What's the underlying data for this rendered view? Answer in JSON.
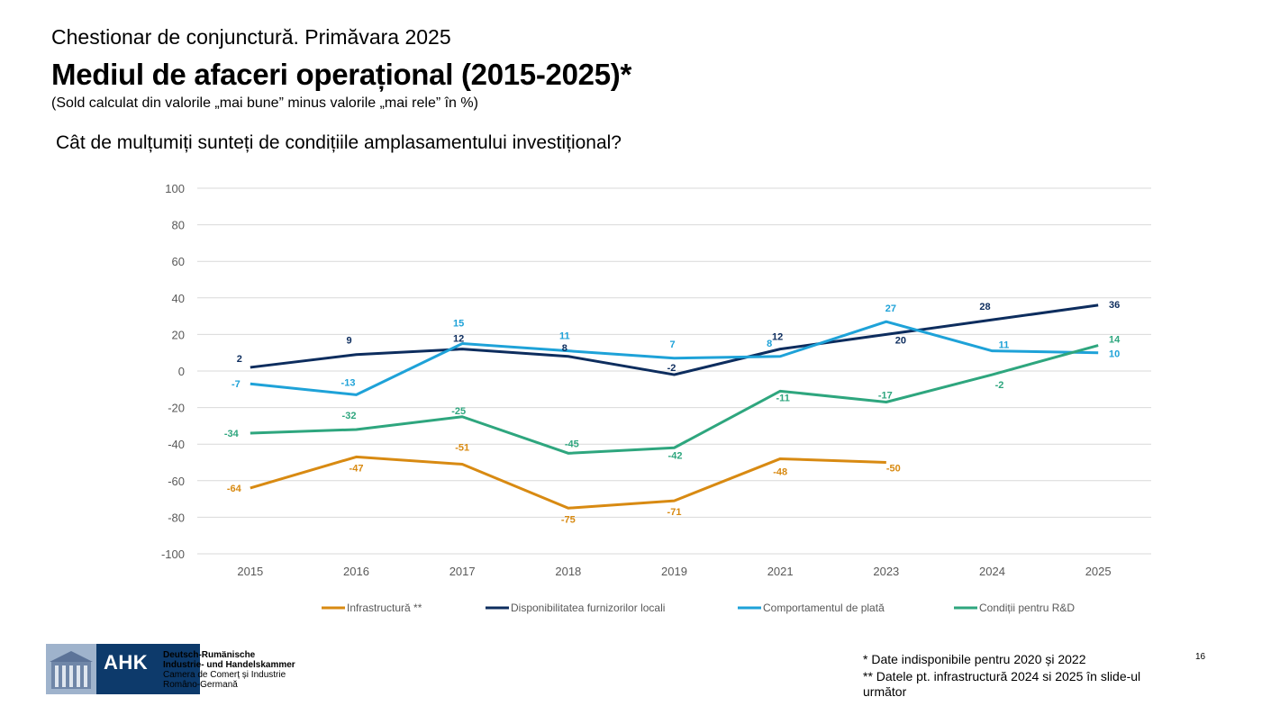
{
  "header": {
    "supertitle": "Chestionar de conjunctură. Primăvara 2025",
    "title": "Mediul de afaceri operațional (2015-2025)*",
    "subtitle": "(Sold calculat din valorile „mai bune” minus valorile „mai rele” în %)",
    "question": "Cât de mulțumiți sunteți de condițiile amplasamentului investițional?"
  },
  "chart_data": {
    "type": "line",
    "title": "",
    "xlabel": "",
    "ylabel": "",
    "x": [
      "2015",
      "2016",
      "2017",
      "2018",
      "2019",
      "2021",
      "2023",
      "2024",
      "2025"
    ],
    "ylim": [
      -100,
      100
    ],
    "yticks": [
      100,
      80,
      60,
      40,
      20,
      0,
      -20,
      -40,
      -60,
      -80,
      -100
    ],
    "grid": true,
    "legend": "bottom",
    "series": [
      {
        "name": "Infrastructură **",
        "color": "#d88a12",
        "values": [
          -64,
          -47,
          -51,
          -75,
          -71,
          -48,
          -50,
          null,
          null
        ]
      },
      {
        "name": "Disponibilitatea furnizorilor locali",
        "color": "#0d2d5e",
        "values": [
          2,
          9,
          12,
          8,
          -2,
          12,
          20,
          28,
          36
        ]
      },
      {
        "name": "Comportamentul de plată",
        "color": "#1ea2d8",
        "values": [
          -7,
          -13,
          15,
          11,
          7,
          8,
          27,
          11,
          10
        ]
      },
      {
        "name": "Condiții pentru R&D",
        "color": "#2ea67e",
        "values": [
          -34,
          -32,
          -25,
          -45,
          -42,
          -11,
          -17,
          -2,
          14
        ]
      }
    ]
  },
  "logo": {
    "mark": "AHK",
    "line1": "Deutsch-Rumänische",
    "line2": "Industrie- und Handelskammer",
    "line3": "Camera de Comerț și Industrie",
    "line4": "Româno-Germană"
  },
  "footnotes": {
    "note1": "*  Date indisponibile pentru 2020 și 2022",
    "note2": "** Datele pt. infrastructură 2024 si 2025 în slide-ul următor"
  },
  "page_number": "16"
}
